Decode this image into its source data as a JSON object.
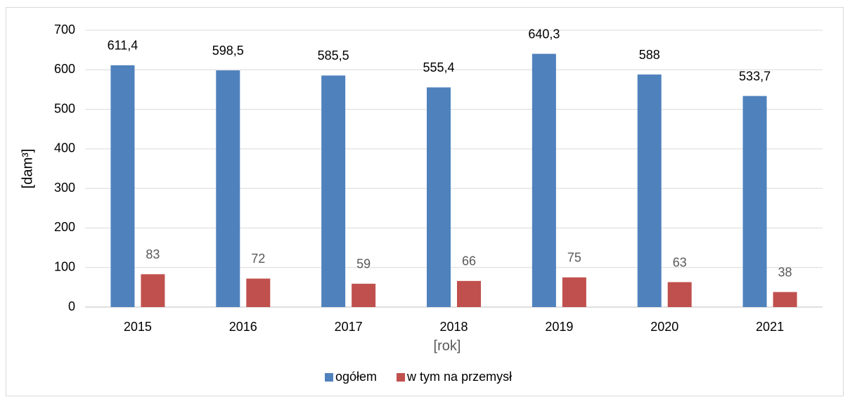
{
  "chart_data": {
    "type": "bar",
    "categories": [
      "2015",
      "2016",
      "2017",
      "2018",
      "2019",
      "2020",
      "2021"
    ],
    "series": [
      {
        "name": "ogółem",
        "color": "#4f81bd",
        "values": [
          611.4,
          598.5,
          585.5,
          555.4,
          640.3,
          588,
          533.7
        ],
        "value_labels": [
          "611,4",
          "598,5",
          "585,5",
          "555,4",
          "640,3",
          "588",
          "533,7"
        ]
      },
      {
        "name": "w tym na przemysł",
        "color": "#c0504d",
        "values": [
          83,
          72,
          59,
          66,
          75,
          63,
          38
        ]
      }
    ],
    "ylabel": "[dam³]",
    "xlabel": "[rok]",
    "ylim": [
      0,
      700
    ],
    "yticks": [
      0,
      100,
      200,
      300,
      400,
      500,
      600,
      700
    ],
    "grid": true,
    "legend": "bottom"
  }
}
